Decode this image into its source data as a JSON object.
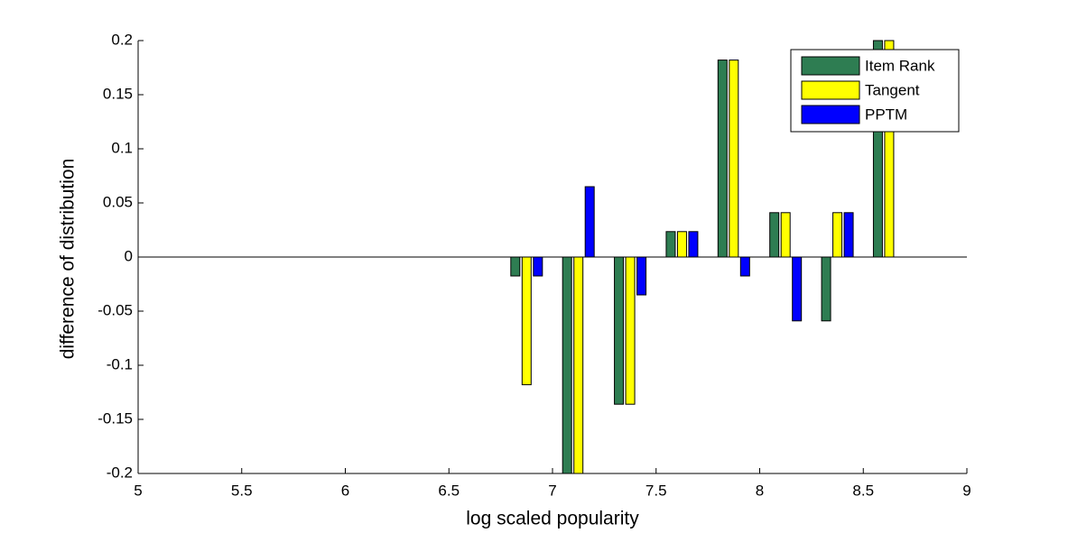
{
  "chart_data": {
    "type": "bar",
    "xlabel": "log scaled popularity",
    "ylabel": "difference of distribution",
    "x": [
      6.875,
      7.125,
      7.375,
      7.625,
      7.875,
      8.125,
      8.375,
      8.625
    ],
    "series": [
      {
        "name": "Item Rank",
        "color": "#2e7d52",
        "values": [
          -0.0175,
          -0.2,
          -0.136,
          0.0235,
          0.182,
          0.041,
          -0.059,
          0.2
        ]
      },
      {
        "name": "Tangent",
        "color": "#ffff00",
        "values": [
          -0.118,
          -0.2,
          -0.136,
          0.0235,
          0.182,
          0.041,
          0.041,
          0.2
        ]
      },
      {
        "name": "PPTM",
        "color": "#0000ff",
        "values": [
          -0.0175,
          0.065,
          -0.035,
          0.0235,
          -0.0175,
          -0.059,
          0.041,
          0
        ]
      }
    ],
    "xlim": [
      5,
      9
    ],
    "xticks": [
      5,
      5.5,
      6,
      6.5,
      7,
      7.5,
      8,
      8.5,
      9
    ],
    "ylim": [
      -0.2,
      0.2
    ],
    "yticks": [
      -0.2,
      -0.15,
      -0.1,
      -0.05,
      0,
      0.05,
      0.1,
      0.15,
      0.2
    ],
    "legend": "upper right"
  }
}
